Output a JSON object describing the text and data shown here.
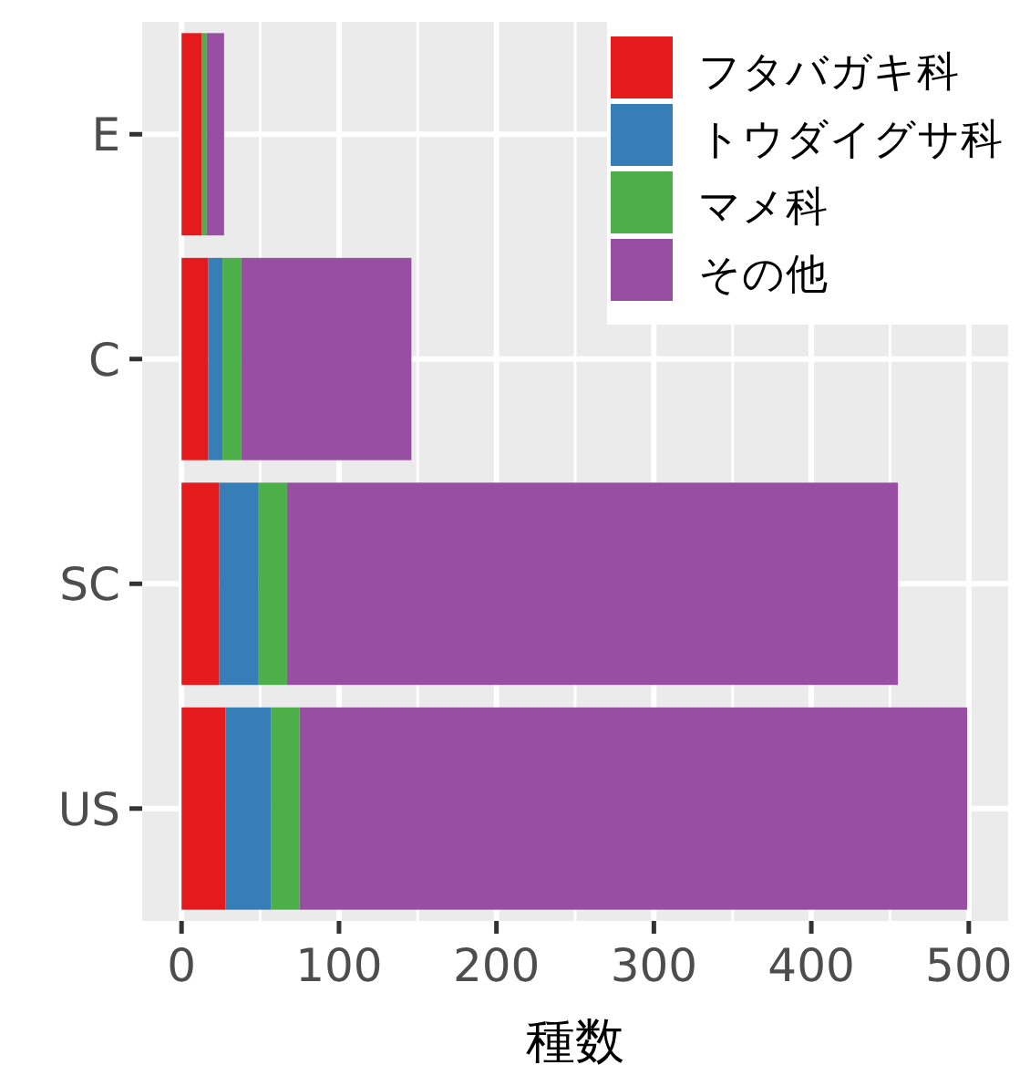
{
  "chart_data": {
    "type": "bar",
    "orientation": "horizontal",
    "stacked": true,
    "xlabel": "種数",
    "categories": [
      "E",
      "C",
      "SC",
      "US"
    ],
    "series": [
      {
        "name": "フタバガキ科",
        "color": "#e41a1c",
        "values": [
          13,
          17,
          24,
          28
        ]
      },
      {
        "name": "トウダイグサ科",
        "color": "#377eb8",
        "values": [
          0,
          9,
          25,
          29
        ]
      },
      {
        "name": "マメ科",
        "color": "#4daf4a",
        "values": [
          3,
          12,
          18,
          18
        ]
      },
      {
        "name": "その他",
        "color": "#984ea3",
        "values": [
          11,
          108,
          388,
          424
        ]
      }
    ],
    "xlim": [
      -25,
      525
    ],
    "xticks": [
      0,
      100,
      200,
      300,
      400,
      500
    ],
    "grid": true,
    "legend": "top right"
  }
}
